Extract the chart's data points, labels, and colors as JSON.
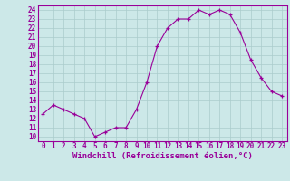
{
  "x": [
    0,
    1,
    2,
    3,
    4,
    5,
    6,
    7,
    8,
    9,
    10,
    11,
    12,
    13,
    14,
    15,
    16,
    17,
    18,
    19,
    20,
    21,
    22,
    23
  ],
  "y": [
    12.5,
    13.5,
    13.0,
    12.5,
    12.0,
    10.0,
    10.5,
    11.0,
    11.0,
    13.0,
    16.0,
    20.0,
    22.0,
    23.0,
    23.0,
    24.0,
    23.5,
    24.0,
    23.5,
    21.5,
    18.5,
    16.5,
    15.0,
    14.5
  ],
  "line_color": "#990099",
  "marker": "+",
  "background_color": "#cce8e8",
  "grid_color": "#aacccc",
  "yticks": [
    10,
    11,
    12,
    13,
    14,
    15,
    16,
    17,
    18,
    19,
    20,
    21,
    22,
    23,
    24
  ],
  "xlabel": "Windchill (Refroidissement éolien,°C)",
  "xlim": [
    -0.5,
    23.5
  ],
  "ylim": [
    9.5,
    24.5
  ],
  "tick_fontsize": 5.5,
  "xlabel_fontsize": 6.5,
  "label_color": "#990099",
  "spine_color": "#990099"
}
